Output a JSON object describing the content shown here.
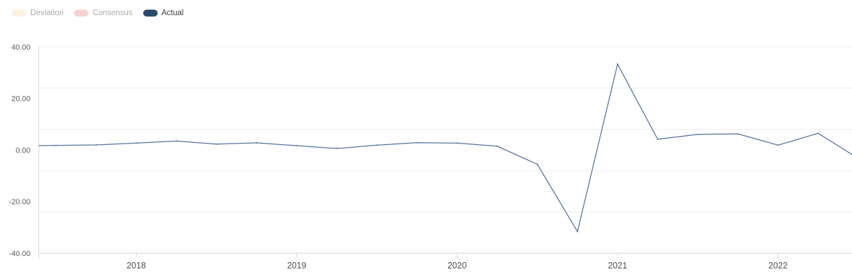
{
  "legend": {
    "items": [
      {
        "id": "deviation",
        "label": "Deviation",
        "color": "#fbf1e1",
        "text_color": "#a9a9a9",
        "active": false
      },
      {
        "id": "consensus",
        "label": "Consensus",
        "color": "#f4d3cf",
        "text_color": "#a9a9a9",
        "active": false
      },
      {
        "id": "actual",
        "label": "Actual",
        "color": "#2a4a6b",
        "text_color": "#3c3c3c",
        "active": true
      }
    ]
  },
  "chart_data": {
    "type": "line",
    "title": "",
    "xlabel": "",
    "ylabel": "",
    "ylim": [
      -40,
      40
    ],
    "grid": true,
    "grid_divisions": 5,
    "legend_position": "top-left",
    "yticks": [
      {
        "value": 40,
        "label": "40.00"
      },
      {
        "value": 20,
        "label": "20.00"
      },
      {
        "value": 0,
        "label": "0.00"
      },
      {
        "value": -20,
        "label": "-20.00"
      },
      {
        "value": -40,
        "label": "-40.00"
      }
    ],
    "xticks": [
      {
        "index": 3,
        "label": "2018"
      },
      {
        "index": 7,
        "label": "2019"
      },
      {
        "index": 11,
        "label": "2020"
      },
      {
        "index": 15,
        "label": "2021"
      },
      {
        "index": 19,
        "label": "2022"
      }
    ],
    "series": [
      {
        "name": "Actual",
        "color": "#5070a0",
        "x": [
          "2017 Q2",
          "2017 Q3",
          "2017 Q4",
          "2018 Q1",
          "2018 Q2",
          "2018 Q3",
          "2018 Q4",
          "2019 Q1",
          "2019 Q2",
          "2019 Q3",
          "2019 Q4",
          "2020 Q1",
          "2020 Q2",
          "2020 Q3",
          "2020 Q4",
          "2021 Q1",
          "2021 Q2",
          "2021 Q3",
          "2021 Q4",
          "2022 Q1",
          "2022 Q2",
          "2022 Q3"
        ],
        "values": [
          1.6,
          1.8,
          2.0,
          2.7,
          3.5,
          2.3,
          2.8,
          1.7,
          0.6,
          1.9,
          2.9,
          2.7,
          1.5,
          -5.5,
          -31.6,
          33.3,
          4.2,
          6.1,
          6.3,
          1.9,
          6.5,
          -3.2
        ]
      }
    ],
    "colors": {
      "gridline": "#ededed",
      "axis_line": "#d6d6d6",
      "ytick_label": "#595959",
      "xtick_label": "#4d4d4d"
    }
  }
}
